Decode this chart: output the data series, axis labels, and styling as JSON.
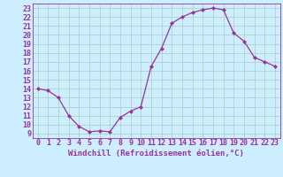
{
  "x": [
    0,
    1,
    2,
    3,
    4,
    5,
    6,
    7,
    8,
    9,
    10,
    11,
    12,
    13,
    14,
    15,
    16,
    17,
    18,
    19,
    20,
    21,
    22,
    23
  ],
  "y": [
    14.0,
    13.8,
    13.0,
    11.0,
    9.8,
    9.2,
    9.3,
    9.2,
    10.8,
    11.5,
    12.0,
    16.5,
    18.5,
    21.3,
    22.0,
    22.5,
    22.8,
    23.0,
    22.8,
    20.2,
    19.3,
    17.5,
    17.0,
    16.5
  ],
  "line_color": "#993399",
  "marker": "D",
  "marker_size": 2.2,
  "bg_color": "#cceeff",
  "grid_color": "#aaccbb",
  "xlabel": "Windchill (Refroidissement éolien,°C)",
  "xlim": [
    -0.5,
    23.5
  ],
  "ylim": [
    8.5,
    23.5
  ],
  "yticks": [
    9,
    10,
    11,
    12,
    13,
    14,
    15,
    16,
    17,
    18,
    19,
    20,
    21,
    22,
    23
  ],
  "xticks": [
    0,
    1,
    2,
    3,
    4,
    5,
    6,
    7,
    8,
    9,
    10,
    11,
    12,
    13,
    14,
    15,
    16,
    17,
    18,
    19,
    20,
    21,
    22,
    23
  ],
  "tick_fontsize": 6.0,
  "xlabel_fontsize": 6.5
}
